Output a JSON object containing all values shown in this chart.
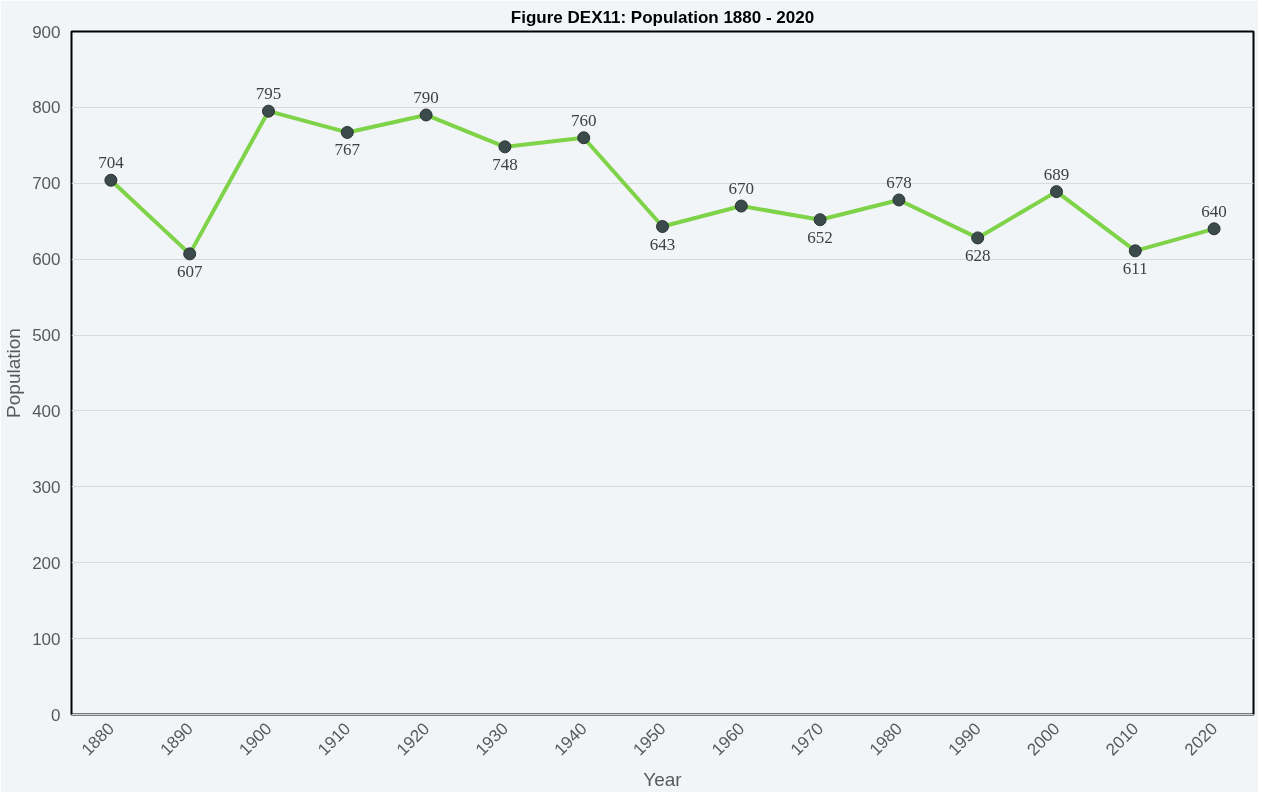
{
  "chart_data": {
    "type": "line",
    "title": "Figure DEX11: Population 1880 - 2020",
    "xlabel": "Year",
    "ylabel": "Population",
    "categories": [
      "1880",
      "1890",
      "1900",
      "1910",
      "1920",
      "1930",
      "1940",
      "1950",
      "1960",
      "1970",
      "1980",
      "1990",
      "2000",
      "2010",
      "2020"
    ],
    "series": [
      {
        "color": "#7ed348",
        "values": [
          704,
          607,
          795,
          767,
          790,
          748,
          760,
          643,
          670,
          652,
          678,
          628,
          689,
          611,
          640
        ]
      }
    ],
    "ylim": [
      0,
      900
    ],
    "yticks": [
      0,
      100,
      200,
      300,
      400,
      500,
      600,
      700,
      800,
      900
    ],
    "grid": "y",
    "marker": "circle",
    "line_style": "solid",
    "data_labels": true
  }
}
